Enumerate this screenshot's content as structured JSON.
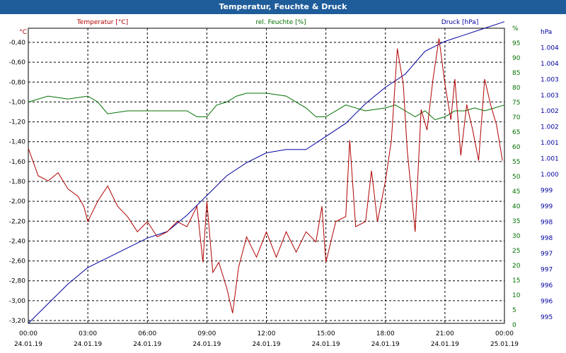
{
  "title": "Temperatur, Feuchte & Druck",
  "colors": {
    "temperature": "#b00000",
    "humidity": "#007000",
    "pressure": "#0000a0",
    "titlebar": "#1e5c9a"
  },
  "chart_data": {
    "type": "line",
    "title": "Temperatur, Feuchte & Druck",
    "grid": true,
    "x_labels": [
      {
        "time": "00:00",
        "date": "24.01.19"
      },
      {
        "time": "03:00",
        "date": "24.01.19"
      },
      {
        "time": "06:00",
        "date": "24.01.19"
      },
      {
        "time": "09:00",
        "date": "24.01.19"
      },
      {
        "time": "12:00",
        "date": "24.01.19"
      },
      {
        "time": "15:00",
        "date": "24.01.19"
      },
      {
        "time": "18:00",
        "date": "24.01.19"
      },
      {
        "time": "21:00",
        "date": "24.01.19"
      },
      {
        "time": "00:00",
        "date": "25.01.19"
      }
    ],
    "x_range_hours": [
      0,
      24
    ],
    "axes": {
      "left": {
        "label": "°C",
        "range": [
          -3.2,
          -0.3
        ],
        "ticks": [
          "-0,40",
          "-0,60",
          "-0,80",
          "-1,00",
          "-1,20",
          "-1,40",
          "-1,60",
          "-1,80",
          "-2,00",
          "-2,20",
          "-2,40",
          "-2,60",
          "-2,80",
          "-3,00",
          "-3,20"
        ]
      },
      "right1": {
        "label": "%",
        "range": [
          0,
          100
        ],
        "ticks": [
          "0",
          "5",
          "10",
          "15",
          "20",
          "25",
          "30",
          "35",
          "40",
          "45",
          "50",
          "55",
          "60",
          "65",
          "70",
          "75",
          "80",
          "85",
          "90",
          "95",
          "%"
        ]
      },
      "right2": {
        "label": "hPa",
        "range": [
          995,
          1004
        ],
        "ticks": [
          "995",
          "996",
          "996",
          "997",
          "997",
          "998",
          "998",
          "999",
          "999",
          "1.000",
          "1.001",
          "1.001",
          "1.002",
          "1.002",
          "1.003",
          "1.003",
          "1.004",
          "1.004",
          "hPa"
        ]
      }
    },
    "series": [
      {
        "name": "Temperatur [°C]",
        "axis": "left",
        "x": [
          0,
          0.5,
          1,
          1.5,
          2,
          2.5,
          2.8,
          3,
          3.5,
          4,
          4.5,
          5,
          5.5,
          6,
          6.5,
          7,
          7.5,
          8,
          8.5,
          8.8,
          9,
          9.3,
          9.6,
          10,
          10.3,
          10.6,
          11,
          11.5,
          12,
          12.5,
          12.8,
          13,
          13.5,
          14,
          14.5,
          14.8,
          15,
          15.5,
          16,
          16.2,
          16.5,
          17,
          17.3,
          17.6,
          18,
          18.3,
          18.6,
          18.9,
          19.1,
          19.5,
          19.8,
          20.1,
          20.4,
          20.7,
          21,
          21.3,
          21.5,
          21.8,
          22.1,
          22.4,
          22.7,
          23,
          23.3,
          23.6,
          23.9
        ],
        "y": [
          -1.48,
          -1.75,
          -1.8,
          -1.72,
          -1.88,
          -1.95,
          -2.05,
          -2.2,
          -2.0,
          -1.85,
          -2.05,
          -2.15,
          -2.3,
          -2.2,
          -2.35,
          -2.3,
          -2.2,
          -2.25,
          -2.05,
          -2.6,
          -2.0,
          -2.7,
          -2.6,
          -2.85,
          -3.1,
          -2.65,
          -2.35,
          -2.55,
          -2.3,
          -2.55,
          -2.4,
          -2.3,
          -2.5,
          -2.3,
          -2.4,
          -2.05,
          -2.6,
          -2.2,
          -2.15,
          -1.4,
          -2.25,
          -2.2,
          -1.7,
          -2.2,
          -1.8,
          -1.4,
          -0.5,
          -0.85,
          -1.5,
          -2.3,
          -1.1,
          -1.3,
          -0.8,
          -0.4,
          -0.85,
          -1.2,
          -0.8,
          -1.55,
          -1.05,
          -1.3,
          -1.6,
          -0.8,
          -1.05,
          -1.25,
          -1.6
        ]
      },
      {
        "name": "rel. Feuchte [%]",
        "axis": "right1",
        "x": [
          0,
          1,
          2,
          3,
          3.5,
          4,
          5,
          6,
          7,
          8,
          8.5,
          9,
          9.5,
          10,
          10.5,
          11,
          12,
          13,
          14,
          14.5,
          15,
          16,
          17,
          18,
          18.5,
          19,
          19.5,
          20,
          20.5,
          21,
          21.5,
          22,
          22.5,
          23,
          23.5,
          24
        ],
        "y": [
          75,
          77,
          76,
          77,
          75,
          71,
          72,
          72,
          72,
          72,
          70,
          70,
          74,
          75,
          77,
          78,
          78,
          77,
          73,
          70,
          70,
          74,
          72,
          73,
          74,
          72,
          70,
          72,
          69,
          70,
          72,
          72,
          73,
          72,
          73,
          74
        ]
      },
      {
        "name": "Druck [hPa]",
        "axis": "right2",
        "x": [
          0,
          1,
          2,
          3,
          4,
          5,
          6,
          7,
          8,
          9,
          10,
          11,
          12,
          13,
          14,
          15,
          16,
          17,
          18,
          19,
          20,
          21,
          22,
          23,
          24
        ],
        "y": [
          995.0,
          995.6,
          996.2,
          996.7,
          997.0,
          997.3,
          997.6,
          997.8,
          998.3,
          998.9,
          999.5,
          999.9,
          1000.2,
          1000.3,
          1000.3,
          1000.7,
          1001.1,
          1001.7,
          1002.2,
          1002.6,
          1003.3,
          1003.6,
          1003.8,
          1004.0,
          1004.2
        ]
      }
    ]
  }
}
